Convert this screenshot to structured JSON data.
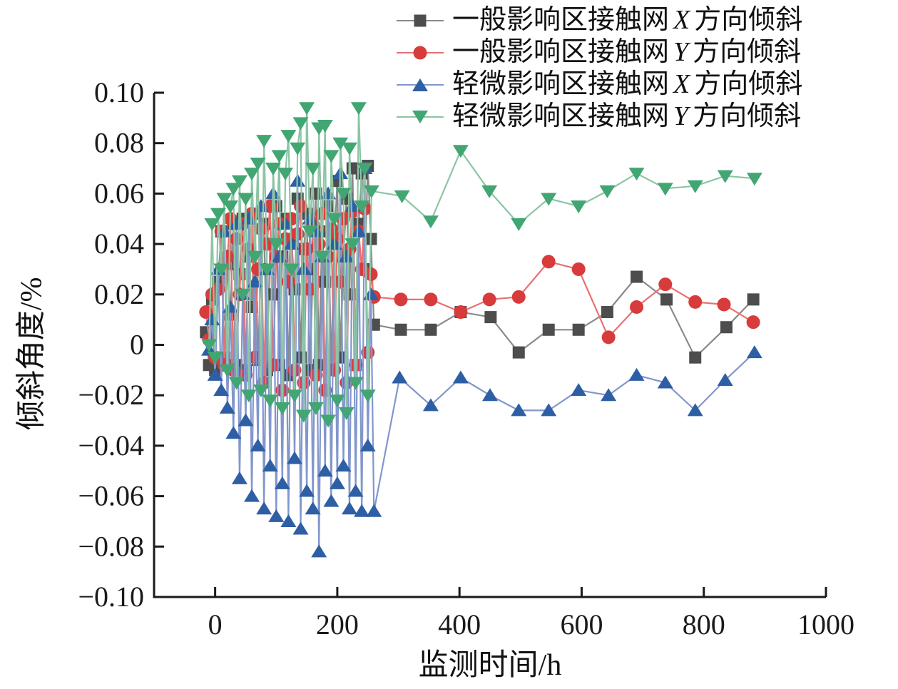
{
  "figure_background": "#ffffff",
  "axis_color": "#1a1a1a",
  "chart_data": {
    "type": "line",
    "title": "",
    "xlabel": "监测时间/h",
    "ylabel": "倾斜角度/%",
    "xlim": [
      -100,
      1000
    ],
    "ylim": [
      -0.1,
      0.1
    ],
    "grid": "off",
    "legend_position": "top-right",
    "xticks": [
      {
        "value": 0,
        "label": "0"
      },
      {
        "value": 200,
        "label": "200"
      },
      {
        "value": 400,
        "label": "400"
      },
      {
        "value": 600,
        "label": "600"
      },
      {
        "value": 800,
        "label": "800"
      },
      {
        "value": 1000,
        "label": "1000"
      }
    ],
    "yticks": [
      {
        "value": 0.1,
        "label": "0.10"
      },
      {
        "value": 0.08,
        "label": "0.08"
      },
      {
        "value": 0.06,
        "label": "0.06"
      },
      {
        "value": 0.04,
        "label": "0.04"
      },
      {
        "value": 0.02,
        "label": "0.02"
      },
      {
        "value": 0,
        "label": "0"
      },
      {
        "value": -0.02,
        "label": "−0.02"
      },
      {
        "value": -0.04,
        "label": "−0.04"
      },
      {
        "value": -0.06,
        "label": "−0.06"
      },
      {
        "value": -0.08,
        "label": "−0.08"
      },
      {
        "value": -0.1,
        "label": "−0.10"
      }
    ],
    "legend": [
      {
        "prefix": "一般影响区接触网",
        "variable": "X",
        "suffix": "方向倾斜"
      },
      {
        "prefix": "一般影响区接触网",
        "variable": "Y",
        "suffix": "方向倾斜"
      },
      {
        "prefix": "轻微影响区接触网",
        "variable": "X",
        "suffix": "方向倾斜"
      },
      {
        "prefix": "轻微影响区接触网",
        "variable": "Y",
        "suffix": "方向倾斜"
      }
    ],
    "series": [
      {
        "name": "一般影响区接触网 X 方向倾斜",
        "marker": "square",
        "color": "#4d4d4d",
        "line_color": "#8a8a8a",
        "points": [
          [
            -15,
            0.005
          ],
          [
            -10,
            -0.008
          ],
          [
            -5,
            0.018
          ],
          [
            0,
            -0.01
          ],
          [
            5,
            0.025
          ],
          [
            10,
            0.045
          ],
          [
            15,
            -0.005
          ],
          [
            20,
            0.032
          ],
          [
            25,
            0.012
          ],
          [
            30,
            0.048
          ],
          [
            35,
            -0.008
          ],
          [
            40,
            0.028
          ],
          [
            45,
            0.05
          ],
          [
            50,
            -0.01
          ],
          [
            55,
            0.035
          ],
          [
            60,
            0.015
          ],
          [
            65,
            0.052
          ],
          [
            70,
            -0.006
          ],
          [
            75,
            0.03
          ],
          [
            80,
            0.048
          ],
          [
            85,
            -0.01
          ],
          [
            90,
            0.04
          ],
          [
            95,
            0.02
          ],
          [
            100,
            0.055
          ],
          [
            105,
            -0.008
          ],
          [
            110,
            0.035
          ],
          [
            115,
            0.05
          ],
          [
            120,
            -0.012
          ],
          [
            125,
            0.042
          ],
          [
            130,
            0.022
          ],
          [
            135,
            0.058
          ],
          [
            140,
            -0.005
          ],
          [
            145,
            0.038
          ],
          [
            150,
            0.052
          ],
          [
            155,
            -0.01
          ],
          [
            160,
            0.03
          ],
          [
            165,
            0.06
          ],
          [
            170,
            -0.008
          ],
          [
            175,
            0.045
          ],
          [
            180,
            0.025
          ],
          [
            185,
            0.055
          ],
          [
            190,
            -0.01
          ],
          [
            195,
            0.04
          ],
          [
            200,
            0.065
          ],
          [
            205,
            -0.005
          ],
          [
            210,
            0.035
          ],
          [
            215,
            0.058
          ],
          [
            220,
            0.02
          ],
          [
            225,
            0.07
          ],
          [
            230,
            -0.008
          ],
          [
            235,
            0.048
          ],
          [
            240,
            0.068
          ],
          [
            245,
            0.03
          ],
          [
            250,
            0.071
          ],
          [
            255,
            0.042
          ],
          [
            260,
            0.008
          ],
          [
            304,
            0.006
          ],
          [
            353,
            0.006
          ],
          [
            402,
            0.013
          ],
          [
            451,
            0.011
          ],
          [
            497,
            -0.003
          ],
          [
            546,
            0.006
          ],
          [
            595,
            0.006
          ],
          [
            642,
            0.013
          ],
          [
            690,
            0.027
          ],
          [
            739,
            0.018
          ],
          [
            786,
            -0.005
          ],
          [
            837,
            0.007
          ],
          [
            881,
            0.018
          ]
        ]
      },
      {
        "name": "一般影响区接触网 Y 方向倾斜",
        "marker": "circle",
        "color": "#d83b3b",
        "line_color": "#e87070",
        "points": [
          [
            -15,
            0.013
          ],
          [
            -10,
            0.002
          ],
          [
            -5,
            0.02
          ],
          [
            0,
            -0.005
          ],
          [
            5,
            0.022
          ],
          [
            10,
            0.045
          ],
          [
            15,
            -0.008
          ],
          [
            20,
            0.035
          ],
          [
            25,
            0.05
          ],
          [
            30,
            -0.01
          ],
          [
            35,
            0.042
          ],
          [
            40,
            0.02
          ],
          [
            45,
            0.048
          ],
          [
            50,
            -0.012
          ],
          [
            55,
            0.038
          ],
          [
            60,
            0.052
          ],
          [
            65,
            -0.005
          ],
          [
            70,
            0.03
          ],
          [
            75,
            0.046
          ],
          [
            80,
            -0.015
          ],
          [
            85,
            0.04
          ],
          [
            90,
            0.055
          ],
          [
            95,
            -0.008
          ],
          [
            100,
            0.035
          ],
          [
            105,
            0.048
          ],
          [
            110,
            -0.018
          ],
          [
            115,
            0.042
          ],
          [
            120,
            0.025
          ],
          [
            125,
            0.05
          ],
          [
            130,
            -0.01
          ],
          [
            135,
            0.044
          ],
          [
            140,
            0.055
          ],
          [
            145,
            -0.015
          ],
          [
            150,
            0.038
          ],
          [
            155,
            0.022
          ],
          [
            160,
            0.048
          ],
          [
            165,
            -0.012
          ],
          [
            170,
            0.04
          ],
          [
            175,
            0.052
          ],
          [
            180,
            -0.018
          ],
          [
            185,
            0.035
          ],
          [
            190,
            0.046
          ],
          [
            195,
            -0.01
          ],
          [
            200,
            0.042
          ],
          [
            205,
            0.025
          ],
          [
            210,
            0.05
          ],
          [
            215,
            -0.015
          ],
          [
            220,
            0.038
          ],
          [
            225,
            0.053
          ],
          [
            230,
            -0.008
          ],
          [
            235,
            0.045
          ],
          [
            240,
            0.03
          ],
          [
            245,
            0.054
          ],
          [
            250,
            -0.003
          ],
          [
            255,
            0.028
          ],
          [
            260,
            0.019
          ],
          [
            304,
            0.018
          ],
          [
            353,
            0.018
          ],
          [
            402,
            0.013
          ],
          [
            449,
            0.018
          ],
          [
            497,
            0.019
          ],
          [
            546,
            0.033
          ],
          [
            595,
            0.03
          ],
          [
            644,
            0.003
          ],
          [
            690,
            0.015
          ],
          [
            737,
            0.024
          ],
          [
            786,
            0.017
          ],
          [
            833,
            0.016
          ],
          [
            881,
            0.009
          ]
        ]
      },
      {
        "name": "轻微影响区接触网 X 方向倾斜",
        "marker": "triangle-up",
        "color": "#2e5fa5",
        "line_color": "#8196cc",
        "points": [
          [
            -10,
            -0.002
          ],
          [
            -5,
            0.01
          ],
          [
            0,
            -0.012
          ],
          [
            5,
            0.03
          ],
          [
            10,
            -0.018
          ],
          [
            15,
            0.045
          ],
          [
            20,
            -0.025
          ],
          [
            25,
            0.015
          ],
          [
            30,
            -0.035
          ],
          [
            35,
            0.048
          ],
          [
            40,
            -0.053
          ],
          [
            45,
            0.02
          ],
          [
            50,
            -0.03
          ],
          [
            55,
            0.05
          ],
          [
            60,
            -0.06
          ],
          [
            65,
            0.025
          ],
          [
            70,
            -0.04
          ],
          [
            75,
            0.055
          ],
          [
            80,
            -0.065
          ],
          [
            85,
            0.03
          ],
          [
            90,
            -0.048
          ],
          [
            95,
            0.06
          ],
          [
            100,
            -0.068
          ],
          [
            105,
            0.035
          ],
          [
            110,
            -0.055
          ],
          [
            115,
            0.048
          ],
          [
            120,
            -0.07
          ],
          [
            125,
            0.04
          ],
          [
            130,
            -0.045
          ],
          [
            135,
            0.065
          ],
          [
            140,
            -0.073
          ],
          [
            145,
            0.03
          ],
          [
            150,
            -0.058
          ],
          [
            155,
            0.05
          ],
          [
            160,
            -0.065
          ],
          [
            165,
            0.045
          ],
          [
            170,
            -0.082
          ],
          [
            175,
            0.035
          ],
          [
            180,
            -0.05
          ],
          [
            185,
            0.06
          ],
          [
            190,
            -0.062
          ],
          [
            195,
            0.04
          ],
          [
            200,
            -0.055
          ],
          [
            205,
            0.068
          ],
          [
            210,
            -0.048
          ],
          [
            215,
            0.035
          ],
          [
            220,
            -0.065
          ],
          [
            225,
            0.055
          ],
          [
            230,
            -0.058
          ],
          [
            235,
            0.045
          ],
          [
            240,
            -0.066
          ],
          [
            245,
            0.07
          ],
          [
            250,
            -0.04
          ],
          [
            255,
            0.02
          ],
          [
            260,
            -0.066
          ],
          [
            302,
            -0.013
          ],
          [
            353,
            -0.024
          ],
          [
            402,
            -0.013
          ],
          [
            450,
            -0.02
          ],
          [
            497,
            -0.026
          ],
          [
            546,
            -0.026
          ],
          [
            595,
            -0.018
          ],
          [
            644,
            -0.02
          ],
          [
            690,
            -0.012
          ],
          [
            737,
            -0.015
          ],
          [
            786,
            -0.026
          ],
          [
            835,
            -0.014
          ],
          [
            883,
            -0.003
          ]
        ]
      },
      {
        "name": "轻微影响区接触网 Y 方向倾斜",
        "marker": "triangle-down",
        "color": "#41a672",
        "line_color": "#8cc5a4",
        "points": [
          [
            -10,
            0.0
          ],
          [
            -5,
            0.048
          ],
          [
            0,
            -0.005
          ],
          [
            5,
            0.052
          ],
          [
            10,
            0.03
          ],
          [
            15,
            0.058
          ],
          [
            20,
            -0.01
          ],
          [
            25,
            0.055
          ],
          [
            30,
            0.062
          ],
          [
            35,
            -0.015
          ],
          [
            40,
            0.065
          ],
          [
            45,
            0.02
          ],
          [
            50,
            0.058
          ],
          [
            55,
            -0.02
          ],
          [
            60,
            0.068
          ],
          [
            65,
            0.035
          ],
          [
            70,
            0.072
          ],
          [
            75,
            -0.018
          ],
          [
            80,
            0.081
          ],
          [
            85,
            0.03
          ],
          [
            90,
            -0.022
          ],
          [
            95,
            0.07
          ],
          [
            100,
            0.04
          ],
          [
            105,
            0.075
          ],
          [
            110,
            -0.025
          ],
          [
            115,
            0.068
          ],
          [
            120,
            0.083
          ],
          [
            125,
            0.03
          ],
          [
            130,
            -0.02
          ],
          [
            135,
            0.078
          ],
          [
            140,
            0.088
          ],
          [
            145,
            -0.028
          ],
          [
            150,
            0.094
          ],
          [
            155,
            0.045
          ],
          [
            160,
            0.07
          ],
          [
            165,
            -0.025
          ],
          [
            170,
            0.086
          ],
          [
            175,
            0.035
          ],
          [
            180,
            0.087
          ],
          [
            185,
            -0.03
          ],
          [
            190,
            0.075
          ],
          [
            195,
            0.05
          ],
          [
            200,
            -0.022
          ],
          [
            205,
            0.08
          ],
          [
            210,
            0.06
          ],
          [
            215,
            -0.027
          ],
          [
            220,
            0.078
          ],
          [
            225,
            0.04
          ],
          [
            230,
            -0.015
          ],
          [
            235,
            0.094
          ],
          [
            240,
            0.055
          ],
          [
            245,
            0.07
          ],
          [
            250,
            -0.02
          ],
          [
            256,
            0.061
          ],
          [
            306,
            0.059
          ],
          [
            353,
            0.049
          ],
          [
            402,
            0.077
          ],
          [
            449,
            0.061
          ],
          [
            497,
            0.048
          ],
          [
            546,
            0.058
          ],
          [
            595,
            0.055
          ],
          [
            642,
            0.061
          ],
          [
            690,
            0.068
          ],
          [
            737,
            0.062
          ],
          [
            786,
            0.063
          ],
          [
            835,
            0.067
          ],
          [
            883,
            0.066
          ]
        ]
      }
    ]
  }
}
